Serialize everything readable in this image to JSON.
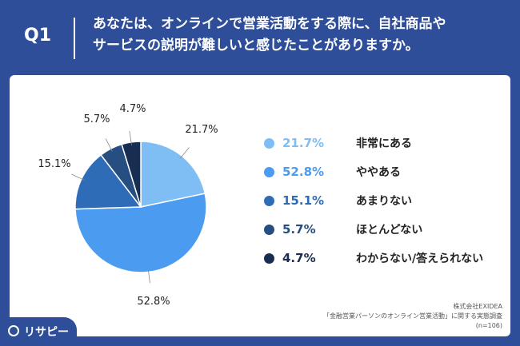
{
  "header": {
    "q_label": "Q1",
    "question": "あなたは、オンラインで営業活動をする際に、自社商品や\nサービスの説明が難しいと感じたことがありますか。"
  },
  "chart_data": {
    "type": "pie",
    "values": [
      21.7,
      52.8,
      15.1,
      5.7,
      4.7
    ],
    "labels": [
      "21.7%",
      "52.8%",
      "15.1%",
      "5.7%",
      "4.7%"
    ],
    "categories": [
      "非常にある",
      "ややある",
      "あまりない",
      "ほとんどない",
      "わからない/答えられない"
    ],
    "colors": [
      "#7ebef5",
      "#4b9cf0",
      "#2f6cb8",
      "#264e80",
      "#172e52"
    ]
  },
  "legend": [
    {
      "pct": "21.7%",
      "label": "非常にある",
      "color": "#7ebef5"
    },
    {
      "pct": "52.8%",
      "label": "ややある",
      "color": "#4b9cf0"
    },
    {
      "pct": "15.1%",
      "label": "あまりない",
      "color": "#2f6cb8"
    },
    {
      "pct": "5.7%",
      "label": "ほとんどない",
      "color": "#264e80"
    },
    {
      "pct": "4.7%",
      "label": "わからない/答えられない",
      "color": "#172e52"
    }
  ],
  "source": {
    "line1": "株式会社EXIDEA",
    "line2": "「金融営業パーソンのオンライン営業活動」に関する実態調査",
    "line3": "(n=106)"
  },
  "brand": {
    "name": "リサピー"
  }
}
